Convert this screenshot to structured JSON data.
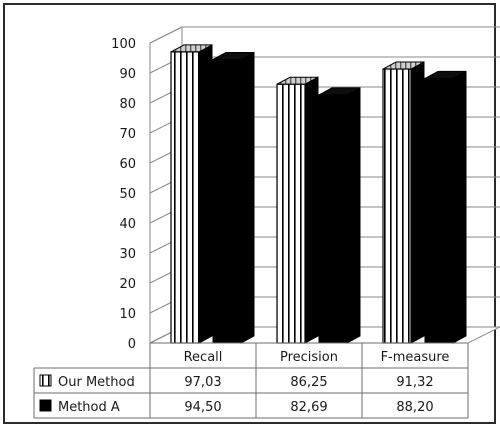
{
  "chart_data": {
    "type": "bar",
    "style": "3d-clustered-bar-with-data-table",
    "categories": [
      "Recall",
      "Precision",
      "F-measure"
    ],
    "series": [
      {
        "name": "Our Method",
        "values": [
          97.03,
          86.25,
          91.32
        ],
        "value_labels": [
          "97,03",
          "86,25",
          "91,32"
        ],
        "fill": "striped-white"
      },
      {
        "name": "Method A",
        "values": [
          94.5,
          82.69,
          88.2
        ],
        "value_labels": [
          "94,50",
          "82,69",
          "88,20"
        ],
        "fill": "black"
      }
    ],
    "ylim": [
      0,
      100
    ],
    "yticks": [
      0,
      10,
      20,
      30,
      40,
      50,
      60,
      70,
      80,
      90,
      100
    ],
    "grid": true,
    "legend": "data-table-below"
  },
  "colors": {
    "frame": "#2b2b2b",
    "grid": "#8a8a8a",
    "bar_dark": "#000000",
    "bar_light": "#ffffff",
    "table_border": "#6e6e6e"
  }
}
